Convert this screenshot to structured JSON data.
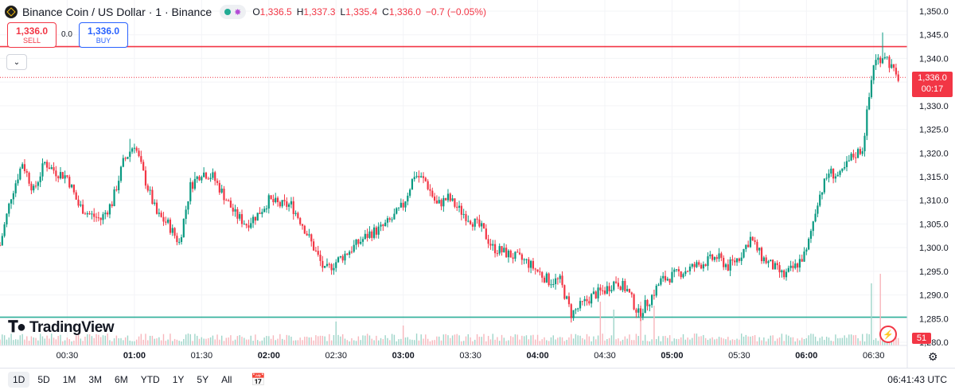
{
  "header": {
    "symbol_title": "Binance Coin / US Dollar · 1 · Binance",
    "share_icon": "share-icon",
    "ohlc": {
      "o_label": "O",
      "o": "1,336.5",
      "h_label": "H",
      "h": "1,337.3",
      "l_label": "L",
      "l": "1,335.4",
      "c_label": "C",
      "c": "1,336.0"
    },
    "change": "−0.7 (−0.05%)"
  },
  "trade": {
    "sell_price": "1,336.0",
    "sell_label": "SELL",
    "spread": "0.0",
    "buy_price": "1,336.0",
    "buy_label": "BUY"
  },
  "watermark": "TradingView",
  "price_label": {
    "value": "1,336.0",
    "countdown": "00:17"
  },
  "volume_label": "51",
  "footer": {
    "ranges": [
      "1D",
      "5D",
      "1M",
      "3M",
      "6M",
      "YTD",
      "1Y",
      "5Y",
      "All"
    ],
    "active_range": "1D",
    "time": "06:41:43 UTC"
  },
  "colors": {
    "up": "#089981",
    "down": "#f23645",
    "resistance": "#f23645",
    "support": "#22ab94"
  },
  "chart_data": {
    "type": "candlestick",
    "y_axis": {
      "min": 1280,
      "max": 1350,
      "ticks": [
        1280.0,
        1285.0,
        1290.0,
        1295.0,
        1300.0,
        1305.0,
        1310.0,
        1315.0,
        1320.0,
        1325.0,
        1330.0,
        1335.0,
        1340.0,
        1345.0,
        1350.0
      ]
    },
    "y_tick_labels": [
      "1,280.0",
      "1,285.0",
      "1,290.0",
      "1,295.0",
      "1,300.0",
      "1,305.0",
      "1,310.0",
      "1,315.0",
      "1,320.0",
      "1,325.0",
      "1,330.0",
      "1,335.0",
      "1,340.0",
      "1,345.0",
      "1,350.0"
    ],
    "x_axis": {
      "start": "00:00",
      "end": "06:45"
    },
    "x_ticks": [
      {
        "t": "00:30",
        "label": "00:30",
        "bold": false
      },
      {
        "t": "01:00",
        "label": "01:00",
        "bold": true
      },
      {
        "t": "01:30",
        "label": "01:30",
        "bold": false
      },
      {
        "t": "02:00",
        "label": "02:00",
        "bold": true
      },
      {
        "t": "02:30",
        "label": "02:30",
        "bold": false
      },
      {
        "t": "03:00",
        "label": "03:00",
        "bold": true
      },
      {
        "t": "03:30",
        "label": "03:30",
        "bold": false
      },
      {
        "t": "04:00",
        "label": "04:00",
        "bold": true
      },
      {
        "t": "04:30",
        "label": "04:30",
        "bold": false
      },
      {
        "t": "05:00",
        "label": "05:00",
        "bold": true
      },
      {
        "t": "05:30",
        "label": "05:30",
        "bold": false
      },
      {
        "t": "06:00",
        "label": "06:00",
        "bold": true
      },
      {
        "t": "06:30",
        "label": "06:30",
        "bold": false
      }
    ],
    "horizontal_lines": [
      {
        "value": 1342.5,
        "kind": "resistance"
      },
      {
        "value": 1285.3,
        "kind": "support"
      },
      {
        "value": 1336.0,
        "kind": "last-price"
      }
    ],
    "close_path": [
      {
        "t": "00:00",
        "c": 1300.5
      },
      {
        "t": "00:05",
        "c": 1311.0
      },
      {
        "t": "00:10",
        "c": 1318.0
      },
      {
        "t": "00:15",
        "c": 1312.0
      },
      {
        "t": "00:20",
        "c": 1318.0
      },
      {
        "t": "00:25",
        "c": 1316.0
      },
      {
        "t": "00:30",
        "c": 1315.0
      },
      {
        "t": "00:35",
        "c": 1309.0
      },
      {
        "t": "00:40",
        "c": 1307.0
      },
      {
        "t": "00:45",
        "c": 1306.0
      },
      {
        "t": "00:50",
        "c": 1309.5
      },
      {
        "t": "00:55",
        "c": 1318.0
      },
      {
        "t": "01:00",
        "c": 1322.0
      },
      {
        "t": "01:05",
        "c": 1314.0
      },
      {
        "t": "01:10",
        "c": 1307.0
      },
      {
        "t": "01:15",
        "c": 1305.0
      },
      {
        "t": "01:20",
        "c": 1301.0
      },
      {
        "t": "01:25",
        "c": 1313.0
      },
      {
        "t": "01:30",
        "c": 1316.0
      },
      {
        "t": "01:35",
        "c": 1315.0
      },
      {
        "t": "01:40",
        "c": 1311.0
      },
      {
        "t": "01:45",
        "c": 1307.0
      },
      {
        "t": "01:50",
        "c": 1305.0
      },
      {
        "t": "01:55",
        "c": 1307.0
      },
      {
        "t": "02:00",
        "c": 1310.0
      },
      {
        "t": "02:05",
        "c": 1309.0
      },
      {
        "t": "02:10",
        "c": 1309.0
      },
      {
        "t": "02:15",
        "c": 1305.0
      },
      {
        "t": "02:20",
        "c": 1300.0
      },
      {
        "t": "02:25",
        "c": 1295.0
      },
      {
        "t": "02:30",
        "c": 1297.0
      },
      {
        "t": "02:35",
        "c": 1299.0
      },
      {
        "t": "02:40",
        "c": 1301.0
      },
      {
        "t": "02:45",
        "c": 1303.0
      },
      {
        "t": "02:50",
        "c": 1304.0
      },
      {
        "t": "02:55",
        "c": 1306.0
      },
      {
        "t": "03:00",
        "c": 1309.0
      },
      {
        "t": "03:05",
        "c": 1315.5
      },
      {
        "t": "03:10",
        "c": 1314.0
      },
      {
        "t": "03:15",
        "c": 1309.0
      },
      {
        "t": "03:20",
        "c": 1310.5
      },
      {
        "t": "03:25",
        "c": 1308.0
      },
      {
        "t": "03:30",
        "c": 1306.0
      },
      {
        "t": "03:35",
        "c": 1304.0
      },
      {
        "t": "03:40",
        "c": 1300.0
      },
      {
        "t": "03:45",
        "c": 1299.0
      },
      {
        "t": "03:50",
        "c": 1298.0
      },
      {
        "t": "03:55",
        "c": 1297.0
      },
      {
        "t": "04:00",
        "c": 1295.0
      },
      {
        "t": "04:05",
        "c": 1293.0
      },
      {
        "t": "04:10",
        "c": 1293.0
      },
      {
        "t": "04:15",
        "c": 1286.0
      },
      {
        "t": "04:20",
        "c": 1288.0
      },
      {
        "t": "04:25",
        "c": 1290.0
      },
      {
        "t": "04:30",
        "c": 1291.0
      },
      {
        "t": "04:35",
        "c": 1293.0
      },
      {
        "t": "04:40",
        "c": 1291.0
      },
      {
        "t": "04:45",
        "c": 1286.0
      },
      {
        "t": "04:50",
        "c": 1289.0
      },
      {
        "t": "04:55",
        "c": 1293.0
      },
      {
        "t": "05:00",
        "c": 1294.0
      },
      {
        "t": "05:05",
        "c": 1295.0
      },
      {
        "t": "05:10",
        "c": 1296.0
      },
      {
        "t": "05:15",
        "c": 1297.0
      },
      {
        "t": "05:20",
        "c": 1298.0
      },
      {
        "t": "05:25",
        "c": 1296.0
      },
      {
        "t": "05:30",
        "c": 1298.0
      },
      {
        "t": "05:35",
        "c": 1302.0
      },
      {
        "t": "05:40",
        "c": 1298.0
      },
      {
        "t": "05:45",
        "c": 1296.0
      },
      {
        "t": "05:50",
        "c": 1294.0
      },
      {
        "t": "05:55",
        "c": 1296.0
      },
      {
        "t": "06:00",
        "c": 1299.0
      },
      {
        "t": "06:05",
        "c": 1310.0
      },
      {
        "t": "06:10",
        "c": 1316.0
      },
      {
        "t": "06:15",
        "c": 1315.0
      },
      {
        "t": "06:20",
        "c": 1319.0
      },
      {
        "t": "06:25",
        "c": 1321.0
      },
      {
        "t": "06:30",
        "c": 1339.0
      },
      {
        "t": "06:35",
        "c": 1341.0
      },
      {
        "t": "06:40",
        "c": 1336.0
      }
    ],
    "spikes": [
      {
        "t": "00:58",
        "h": 1323.0
      },
      {
        "t": "06:34",
        "h": 1345.5
      },
      {
        "t": "01:27",
        "h": 1316.0
      }
    ],
    "volume_spikes": [
      {
        "t": "04:28",
        "v": 0.55
      },
      {
        "t": "04:34",
        "v": 0.45
      },
      {
        "t": "04:46",
        "v": 0.55
      },
      {
        "t": "04:52",
        "v": 0.5
      },
      {
        "t": "06:29",
        "v": 0.78
      },
      {
        "t": "06:33",
        "v": 0.9
      },
      {
        "t": "06:37",
        "v": 0.25
      },
      {
        "t": "02:30",
        "v": 0.3
      },
      {
        "t": "03:00",
        "v": 0.25
      }
    ]
  }
}
